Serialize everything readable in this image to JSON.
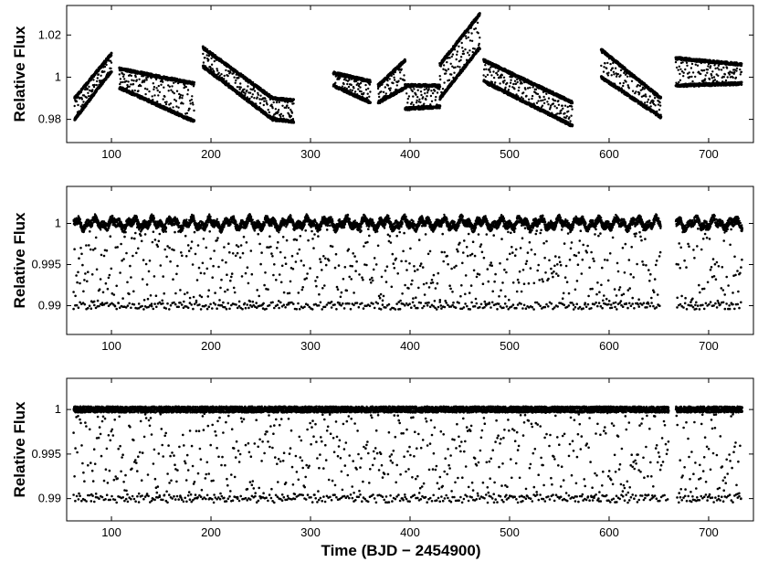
{
  "chart_data": [
    {
      "type": "scatter",
      "ylabel": "Relative Flux",
      "xlabel": "",
      "xlim": [
        55,
        745
      ],
      "ylim": [
        0.969,
        1.034
      ],
      "xticks": [
        100,
        200,
        300,
        400,
        500,
        600,
        700
      ],
      "yticks": [
        0.98,
        1,
        1.02
      ],
      "ytick_labels": [
        "0.98",
        "1",
        "1.02"
      ],
      "grid": false,
      "series": [
        {
          "color": "#000000",
          "segments": [
            {
              "x": [
                63,
                100
              ],
              "upper": [
                0.99,
                1.011
              ],
              "lower": [
                0.98,
                1.003
              ]
            },
            {
              "x": [
                108,
                183
              ],
              "upper": [
                1.004,
                0.997
              ],
              "lower": [
                0.995,
                0.979
              ]
            },
            {
              "x": [
                192,
                262
              ],
              "upper": [
                1.014,
                0.99
              ],
              "lower": [
                1.005,
                0.98
              ]
            },
            {
              "x": [
                262,
                283
              ],
              "upper": [
                0.99,
                0.989
              ],
              "lower": [
                0.98,
                0.979
              ]
            },
            {
              "x": [
                323,
                360
              ],
              "upper": [
                1.002,
                0.998
              ],
              "lower": [
                0.996,
                0.988
              ]
            },
            {
              "x": [
                368,
                395
              ],
              "upper": [
                0.996,
                1.008
              ],
              "lower": [
                0.988,
                0.995
              ]
            },
            {
              "x": [
                395,
                430
              ],
              "upper": [
                0.996,
                0.996
              ],
              "lower": [
                0.985,
                0.986
              ]
            },
            {
              "x": [
                430,
                470
              ],
              "upper": [
                1.006,
                1.03
              ],
              "lower": [
                0.99,
                1.014
              ]
            },
            {
              "x": [
                474,
                563
              ],
              "upper": [
                1.008,
                0.988
              ],
              "lower": [
                0.998,
                0.977
              ]
            },
            {
              "x": [
                592,
                652
              ],
              "upper": [
                1.013,
                0.99
              ],
              "lower": [
                1.0,
                0.981
              ]
            },
            {
              "x": [
                667,
                733
              ],
              "upper": [
                1.009,
                1.006
              ],
              "lower": [
                0.996,
                0.997
              ]
            }
          ]
        }
      ]
    },
    {
      "type": "scatter",
      "ylabel": "Relative Flux",
      "xlabel": "",
      "xlim": [
        55,
        745
      ],
      "ylim": [
        0.9865,
        1.0045
      ],
      "xticks": [
        100,
        200,
        300,
        400,
        500,
        600,
        700
      ],
      "yticks": [
        0.99,
        0.995,
        1
      ],
      "ytick_labels": [
        "0.99",
        "0.995",
        "1"
      ],
      "grid": false,
      "series": [
        {
          "color": "#000000",
          "baseline": 1.0,
          "secondary": 0.99,
          "gaps": [
            [
              652,
              667
            ],
            [
              735,
              745
            ]
          ],
          "x_range": [
            62,
            734
          ]
        }
      ]
    },
    {
      "type": "scatter",
      "ylabel": "Relative Flux",
      "xlabel": "Time (BJD − 2454900)",
      "xlim": [
        55,
        745
      ],
      "ylim": [
        0.9875,
        1.0035
      ],
      "xticks": [
        100,
        200,
        300,
        400,
        500,
        600,
        700
      ],
      "yticks": [
        0.99,
        0.995,
        1
      ],
      "ytick_labels": [
        "0.99",
        "0.995",
        "1"
      ],
      "grid": false,
      "series": [
        {
          "color": "#000000",
          "baseline": 1.0,
          "secondary": 0.99,
          "gaps": [
            [
              660,
              667
            ],
            [
              735,
              745
            ]
          ],
          "x_range": [
            62,
            734
          ]
        }
      ]
    }
  ]
}
